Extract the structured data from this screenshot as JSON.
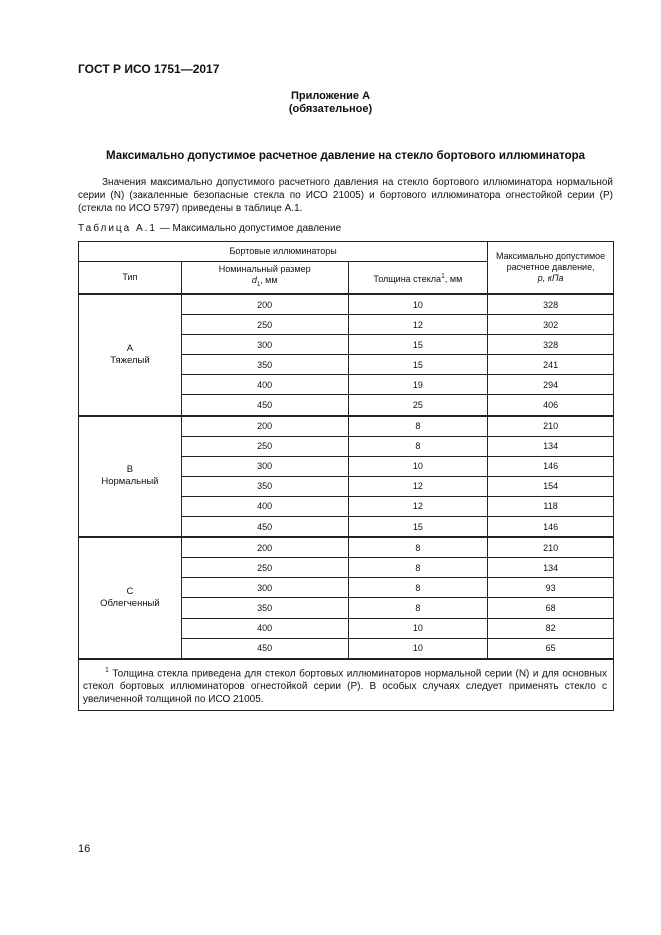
{
  "header": {
    "doc_code": "ГОСТ Р ИСО 1751—2017"
  },
  "appendix": {
    "title": "Приложение А",
    "status": "(обязательное)"
  },
  "section_title": "Максимально допустимое расчетное давление на стекло бортового иллюминатора",
  "paragraph": "Значения максимально допустимого расчетного давления на стекло бортового иллюминатора нормальной серии (N) (закаленные безопасные стекла по ИСО 21005) и бортового иллюминатора огнестойкой серии (Р) (стекла по ИСО 5797) приведены в таблице А.1.",
  "caption": {
    "label": "Таблица А.1",
    "text": " — Максимально допустимое давление"
  },
  "table": {
    "group_header": "Бортовые иллюминаторы",
    "col_type": "Тип",
    "col_size": "Номинальный размер",
    "col_size_sym": "d",
    "col_size_sub": "1",
    "col_size_unit": ", мм",
    "col_thick": "Толщина стекла",
    "col_thick_sup": "1",
    "col_thick_unit": ", мм",
    "col_pressure": "Максимально допустимое расчетное давление,",
    "col_pressure_unit": "p, кПа",
    "groups": [
      {
        "letter": "А",
        "name": "Тяжелый",
        "rows": [
          {
            "size": "200",
            "thick": "10",
            "p": "328"
          },
          {
            "size": "250",
            "thick": "12",
            "p": "302"
          },
          {
            "size": "300",
            "thick": "15",
            "p": "328"
          },
          {
            "size": "350",
            "thick": "15",
            "p": "241"
          },
          {
            "size": "400",
            "thick": "19",
            "p": "294"
          },
          {
            "size": "450",
            "thick": "25",
            "p": "406"
          }
        ]
      },
      {
        "letter": "В",
        "name": "Нормальный",
        "rows": [
          {
            "size": "200",
            "thick": "8",
            "p": "210"
          },
          {
            "size": "250",
            "thick": "8",
            "p": "134"
          },
          {
            "size": "300",
            "thick": "10",
            "p": "146"
          },
          {
            "size": "350",
            "thick": "12",
            "p": "154"
          },
          {
            "size": "400",
            "thick": "12",
            "p": "118"
          },
          {
            "size": "450",
            "thick": "15",
            "p": "146"
          }
        ]
      },
      {
        "letter": "С",
        "name": "Облегченный",
        "rows": [
          {
            "size": "200",
            "thick": "8",
            "p": "210"
          },
          {
            "size": "250",
            "thick": "8",
            "p": "134"
          },
          {
            "size": "300",
            "thick": "8",
            "p": "93"
          },
          {
            "size": "350",
            "thick": "8",
            "p": "68"
          },
          {
            "size": "400",
            "thick": "10",
            "p": "82"
          },
          {
            "size": "450",
            "thick": "10",
            "p": "65"
          }
        ]
      }
    ],
    "footnote_mark": "1",
    "footnote": " Толщина стекла приведена для стекол бортовых иллюминаторов нормальной серии (N) и для основных стекол бортовых иллюминаторов огнестойкой серии (Р). В особых случаях следует применять стекло с увеличенной толщиной по ИСО 21005."
  },
  "page_number": "16"
}
